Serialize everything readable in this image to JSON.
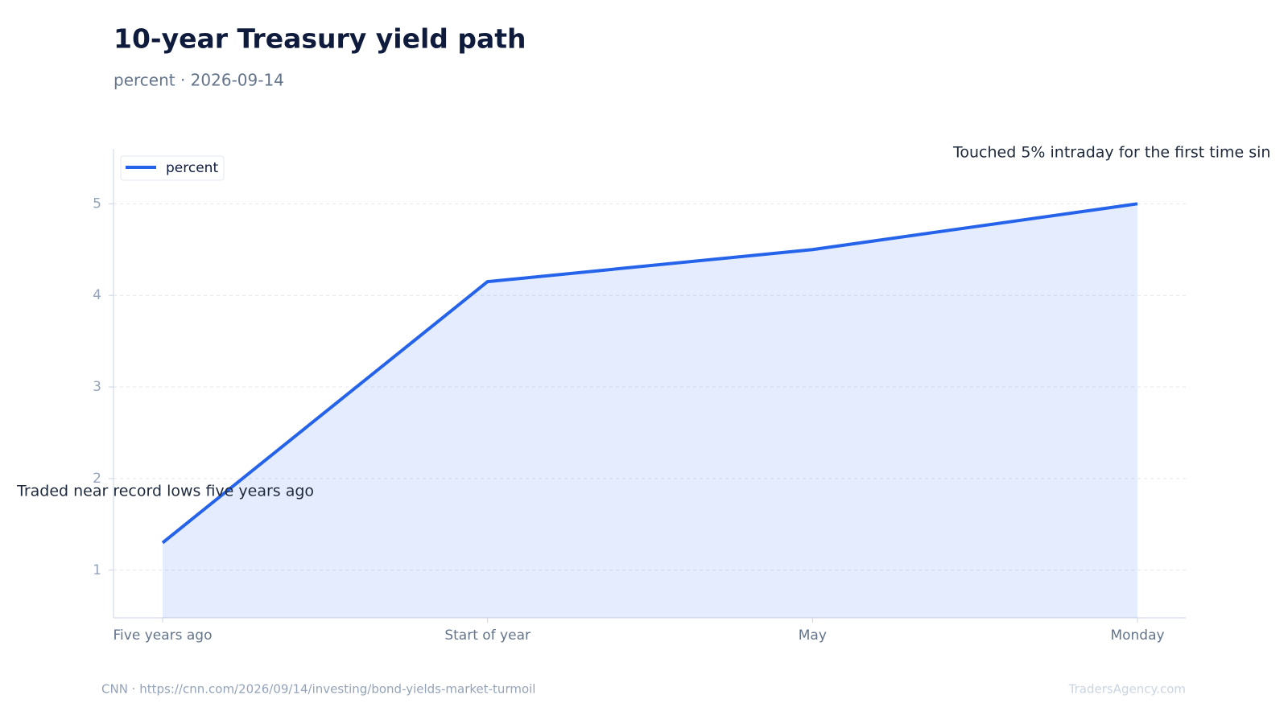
{
  "chart_data": {
    "type": "line",
    "title": "10-year Treasury yield path",
    "subtitle": "percent · 2026-09-14",
    "categories": [
      "Five years ago",
      "Start of year",
      "May",
      "Monday"
    ],
    "series": [
      {
        "name": "percent",
        "color": "#2563eb",
        "values": [
          1.3,
          4.15,
          4.5,
          5.0
        ]
      }
    ],
    "ylim": [
      0.48,
      5.6
    ],
    "yticks": [
      1,
      2,
      3,
      4,
      5
    ],
    "grid": true,
    "area": true,
    "legend": "upper left",
    "annotations": [
      "Traded near record lows five years ago",
      "Touched 5% intraday for the first time sin"
    ],
    "source": "CNN · https://cnn.com/2026/09/14/investing/bond-yields-market-turmoil",
    "watermark": "TradersAgency.com"
  }
}
